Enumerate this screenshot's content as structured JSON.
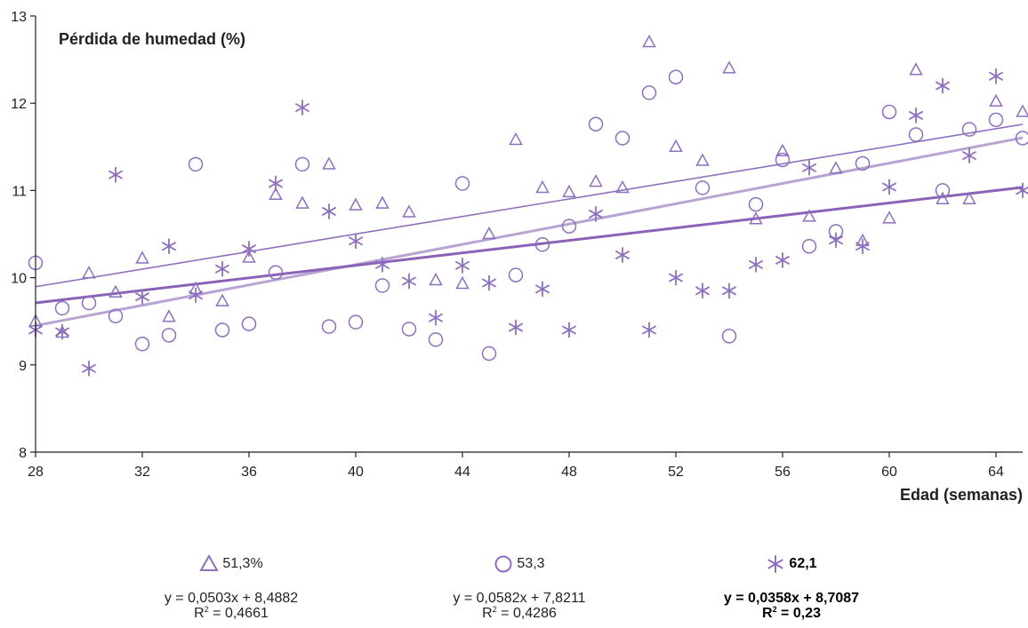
{
  "chart_data": {
    "type": "scatter",
    "ylabel": "Pérdida de humedad (%)",
    "xlabel": "Edad (semanas)",
    "xlim": [
      28,
      65
    ],
    "ylim": [
      8,
      13
    ],
    "x_ticks": [
      "28",
      "32",
      "36",
      "40",
      "44",
      "48",
      "52",
      "56",
      "60",
      "64"
    ],
    "y_ticks": [
      "8",
      "9",
      "10",
      "11",
      "12",
      "13"
    ],
    "grid": false,
    "legend_position": "bottom",
    "series": [
      {
        "name": "51,3%",
        "marker": "triangle",
        "color": "#8e6fbd",
        "trendline": {
          "slope": 0.0503,
          "intercept": 8.4882,
          "color": "#8e6fbd"
        },
        "equation": "y = 0,0503x + 8,4882",
        "r2_label": "R",
        "r2_value": " = 0,4661",
        "points": [
          [
            28,
            9.5
          ],
          [
            29,
            9.37
          ],
          [
            30,
            10.05
          ],
          [
            31,
            9.83
          ],
          [
            32,
            10.22
          ],
          [
            33,
            9.55
          ],
          [
            34,
            9.87
          ],
          [
            35,
            9.73
          ],
          [
            36,
            10.23
          ],
          [
            37,
            10.95
          ],
          [
            38,
            10.85
          ],
          [
            39,
            11.3
          ],
          [
            40,
            10.83
          ],
          [
            41,
            10.85
          ],
          [
            42,
            10.75
          ],
          [
            43,
            9.97
          ],
          [
            44,
            9.93
          ],
          [
            45,
            10.5
          ],
          [
            46,
            11.58
          ],
          [
            47,
            11.03
          ],
          [
            48,
            10.98
          ],
          [
            49,
            11.1
          ],
          [
            50,
            11.03
          ],
          [
            51,
            12.7
          ],
          [
            52,
            11.5
          ],
          [
            53,
            11.34
          ],
          [
            54,
            12.4
          ],
          [
            55,
            10.67
          ],
          [
            56,
            11.45
          ],
          [
            57,
            10.7
          ],
          [
            58,
            11.25
          ],
          [
            59,
            10.42
          ],
          [
            60,
            10.68
          ],
          [
            61,
            12.38
          ],
          [
            62,
            10.9
          ],
          [
            63,
            10.9
          ],
          [
            64,
            12.02
          ],
          [
            65,
            11.9
          ]
        ]
      },
      {
        "name": "53,3",
        "marker": "circle",
        "color": "#8e6fbd",
        "trendline": {
          "slope": 0.0582,
          "intercept": 7.8211,
          "color": "#b8a4d3"
        },
        "equation": "y = 0,0582x + 7,8211",
        "r2_label": "R",
        "r2_value": " = 0,4286",
        "points": [
          [
            28,
            10.17
          ],
          [
            29,
            9.65
          ],
          [
            30,
            9.71
          ],
          [
            31,
            9.56
          ],
          [
            32,
            9.24
          ],
          [
            33,
            9.34
          ],
          [
            34,
            11.3
          ],
          [
            35,
            9.4
          ],
          [
            36,
            9.47
          ],
          [
            37,
            10.06
          ],
          [
            38,
            11.3
          ],
          [
            39,
            9.44
          ],
          [
            40,
            9.49
          ],
          [
            41,
            9.91
          ],
          [
            42,
            9.41
          ],
          [
            43,
            9.29
          ],
          [
            44,
            11.08
          ],
          [
            45,
            9.13
          ],
          [
            46,
            10.03
          ],
          [
            47,
            10.38
          ],
          [
            48,
            10.59
          ],
          [
            49,
            11.76
          ],
          [
            50,
            11.6
          ],
          [
            51,
            12.12
          ],
          [
            52,
            12.3
          ],
          [
            53,
            11.03
          ],
          [
            54,
            9.33
          ],
          [
            55,
            10.84
          ],
          [
            56,
            11.35
          ],
          [
            57,
            10.36
          ],
          [
            58,
            10.53
          ],
          [
            59,
            11.31
          ],
          [
            60,
            11.9
          ],
          [
            61,
            11.64
          ],
          [
            62,
            11.0
          ],
          [
            63,
            11.7
          ],
          [
            64,
            11.81
          ],
          [
            65,
            11.6
          ]
        ]
      },
      {
        "name": "62,1",
        "marker": "asterisk",
        "color": "#8e6fbd",
        "trendline": {
          "slope": 0.0358,
          "intercept": 8.7087,
          "color": "#8a62b8"
        },
        "equation": "y = 0,0358x + 8,7087",
        "r2_label": "R",
        "r2_value": " = 0,23",
        "points": [
          [
            28,
            9.4
          ],
          [
            29,
            9.38
          ],
          [
            30,
            8.96
          ],
          [
            31,
            11.18
          ],
          [
            32,
            9.78
          ],
          [
            33,
            10.36
          ],
          [
            34,
            9.8
          ],
          [
            35,
            10.1
          ],
          [
            36,
            10.33
          ],
          [
            37,
            11.08
          ],
          [
            38,
            11.95
          ],
          [
            39,
            10.76
          ],
          [
            40,
            10.42
          ],
          [
            41,
            10.15
          ],
          [
            42,
            9.96
          ],
          [
            43,
            9.54
          ],
          [
            44,
            10.14
          ],
          [
            45,
            9.94
          ],
          [
            46,
            9.43
          ],
          [
            47,
            9.87
          ],
          [
            48,
            9.4
          ],
          [
            49,
            10.73
          ],
          [
            50,
            10.26
          ],
          [
            51,
            9.4
          ],
          [
            52,
            10.0
          ],
          [
            53,
            9.85
          ],
          [
            54,
            9.85
          ],
          [
            55,
            10.15
          ],
          [
            56,
            10.2
          ],
          [
            57,
            11.26
          ],
          [
            58,
            10.43
          ],
          [
            59,
            10.36
          ],
          [
            60,
            11.04
          ],
          [
            61,
            11.86
          ],
          [
            62,
            12.2
          ],
          [
            63,
            11.4
          ],
          [
            64,
            12.31
          ],
          [
            65,
            11.0
          ]
        ]
      }
    ]
  }
}
